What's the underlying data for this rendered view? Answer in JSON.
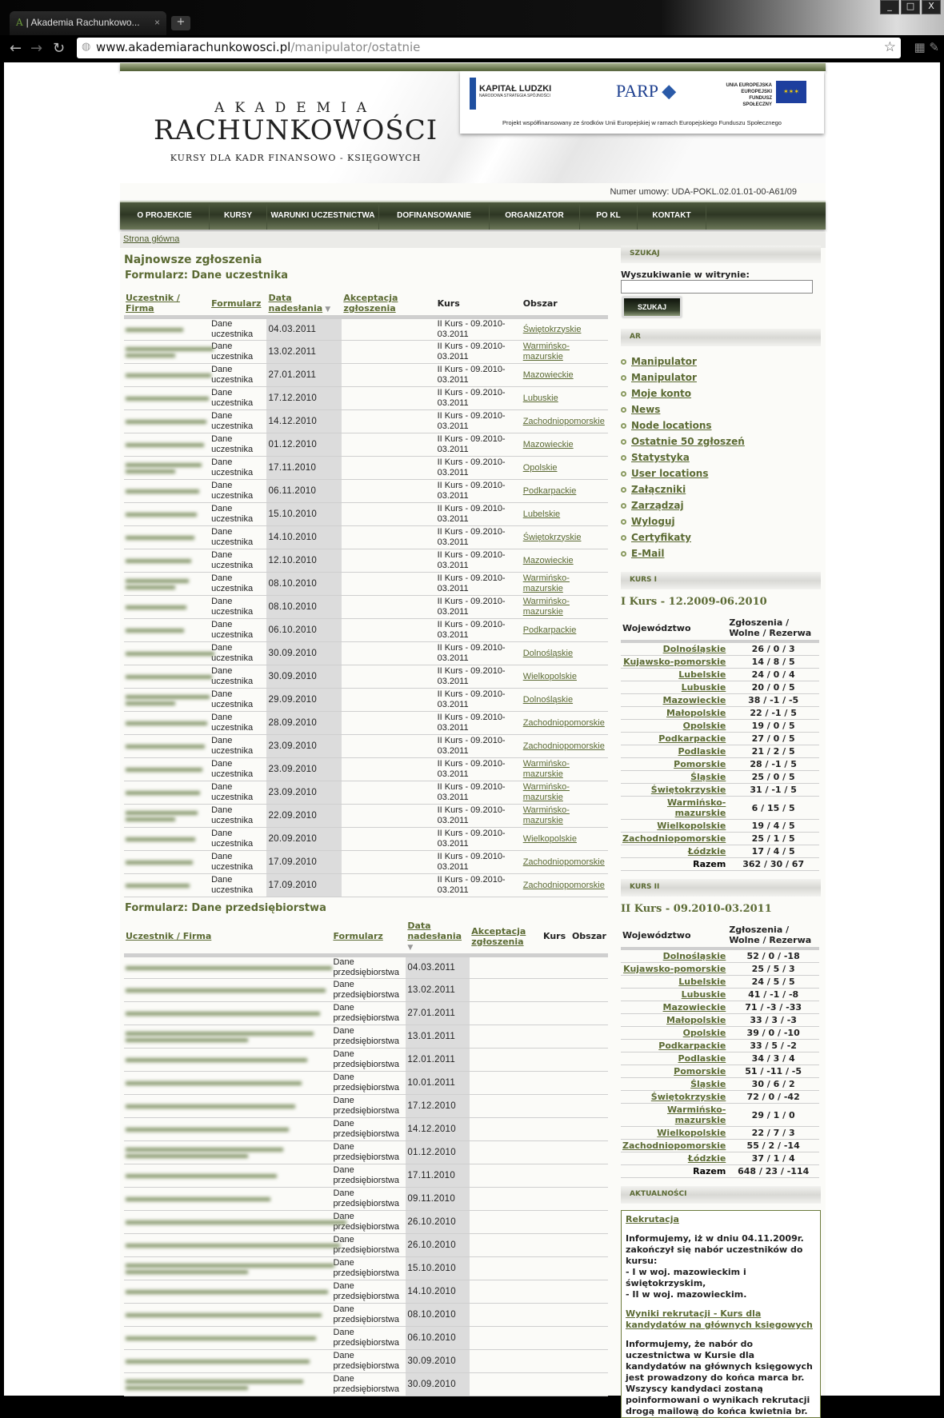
{
  "browser": {
    "tab_title": "| Akademia Rachunkowo...",
    "tab_icon": "A",
    "url_host": "www.akademiarachunkowosci.pl",
    "url_path": "/manipulator/ostatnie"
  },
  "header": {
    "logo_line1": "AKADEMIA",
    "logo_line2": "RACHUNKOWOŚCI",
    "logo_line3": "KURSY DLA KADR FINANSOWO - KSIĘGOWYCH",
    "eu": {
      "kl": "KAPITAŁ LUDZKI",
      "kl_sub": "NARODOWA STRATEGIA SPÓJNOŚCI",
      "parp": "PARP",
      "ue": "UNIA EUROPEJSKA\nEUROPEJSKI\nFUNDUSZ SPOŁECZNY",
      "project": "Projekt współfinansowany ze środków Unii Europejskiej w ramach Europejskiego Funduszu Społecznego"
    },
    "contract": "Numer umowy: UDA-POKL.02.01.01-00-A61/09"
  },
  "nav": [
    "O PROJEKCIE",
    "KURSY",
    "WARUNKI UCZESTNICTWA",
    "DOFINANSOWANIE",
    "ORGANIZATOR",
    "PO KL",
    "KONTAKT"
  ],
  "breadcrumb": "Strona główna",
  "main": {
    "title": "Najnowsze zgłoszenia",
    "form1": {
      "title": "Formularz: Dane uczestnika",
      "headers": [
        "Uczestnik / Firma",
        "Formularz",
        "Data nadesłania",
        "Akceptacja zgłoszenia",
        "Kurs",
        "Obszar"
      ],
      "form_label": "Dane uczestnika",
      "kurs": "II Kurs - 09.2010-03.2011",
      "rows": [
        [
          "04.03.2011",
          "Świętokrzyskie"
        ],
        [
          "13.02.2011",
          "Warmińsko-mazurskie"
        ],
        [
          "27.01.2011",
          "Mazowieckie"
        ],
        [
          "17.12.2010",
          "Lubuskie"
        ],
        [
          "14.12.2010",
          "Zachodniopomorskie"
        ],
        [
          "01.12.2010",
          "Mazowieckie"
        ],
        [
          "17.11.2010",
          "Opolskie"
        ],
        [
          "06.11.2010",
          "Podkarpackie"
        ],
        [
          "15.10.2010",
          "Lubelskie"
        ],
        [
          "14.10.2010",
          "Świętokrzyskie"
        ],
        [
          "12.10.2010",
          "Mazowieckie"
        ],
        [
          "08.10.2010",
          "Warmińsko-mazurskie"
        ],
        [
          "08.10.2010",
          "Warmińsko-mazurskie"
        ],
        [
          "06.10.2010",
          "Podkarpackie"
        ],
        [
          "30.09.2010",
          "Dolnośląskie"
        ],
        [
          "30.09.2010",
          "Wielkopolskie"
        ],
        [
          "29.09.2010",
          "Dolnośląskie"
        ],
        [
          "28.09.2010",
          "Zachodniopomorskie"
        ],
        [
          "23.09.2010",
          "Zachodniopomorskie"
        ],
        [
          "23.09.2010",
          "Warmińsko-mazurskie"
        ],
        [
          "23.09.2010",
          "Warmińsko-mazurskie"
        ],
        [
          "22.09.2010",
          "Warmińsko-mazurskie"
        ],
        [
          "20.09.2010",
          "Wielkopolskie"
        ],
        [
          "17.09.2010",
          "Zachodniopomorskie"
        ],
        [
          "17.09.2010",
          "Zachodniopomorskie"
        ]
      ]
    },
    "form2": {
      "title": "Formularz: Dane przedsiębiorstwa",
      "headers": [
        "Uczestnik / Firma",
        "Formularz",
        "Data nadesłania",
        "Akceptacja zgłoszenia",
        "Kurs",
        "Obszar"
      ],
      "form_label": "Dane przedsiębiorstwa",
      "dates": [
        "04.03.2011",
        "13.02.2011",
        "27.01.2011",
        "13.01.2011",
        "12.01.2011",
        "10.01.2011",
        "17.12.2010",
        "14.12.2010",
        "01.12.2010",
        "17.11.2010",
        "09.11.2010",
        "26.10.2010",
        "26.10.2010",
        "15.10.2010",
        "14.10.2010",
        "08.10.2010",
        "06.10.2010",
        "30.09.2010",
        "30.09.2010"
      ]
    }
  },
  "sidebar": {
    "search": {
      "block": "SZUKAJ",
      "label": "Wyszukiwanie w witrynie:",
      "value": "",
      "button": "SZUKAJ"
    },
    "ar": {
      "block": "AR",
      "items": [
        "Manipulator",
        "Manipulator",
        "Moje konto",
        "News",
        "Node locations",
        "Ostatnie 50 zgłoszeń",
        "Statystyka",
        "User locations",
        "Załączniki",
        "Zarządzaj",
        "Wyloguj",
        "Certyfikaty",
        "E-Mail"
      ]
    },
    "kurs1": {
      "block": "KURS I",
      "title": "I Kurs - 12.2009-06.2010",
      "col1": "Województwo",
      "col2": "Zgłoszenia / Wolne / Rezerwa",
      "rows": [
        [
          "Dolnośląskie",
          "26 / 0 / 3"
        ],
        [
          "Kujawsko-pomorskie",
          "14 / 8 / 5"
        ],
        [
          "Lubelskie",
          "24 / 0 / 4"
        ],
        [
          "Lubuskie",
          "20 / 0 / 5"
        ],
        [
          "Mazowieckie",
          "38 / -1 / -5"
        ],
        [
          "Małopolskie",
          "22 / -1 / 5"
        ],
        [
          "Opolskie",
          "19 / 0 / 5"
        ],
        [
          "Podkarpackie",
          "27 / 0 / 5"
        ],
        [
          "Podlaskie",
          "21 / 2 / 5"
        ],
        [
          "Pomorskie",
          "28 / -1 / 5"
        ],
        [
          "Śląskie",
          "25 / 0 / 5"
        ],
        [
          "Świętokrzyskie",
          "31 / -1 / 5"
        ],
        [
          "Warmińsko-mazurskie",
          "6 / 15 / 5"
        ],
        [
          "Wielkopolskie",
          "19 / 4 / 5"
        ],
        [
          "Zachodniopomorskie",
          "25 / 1 / 5"
        ],
        [
          "Łódzkie",
          "17 / 4 / 5"
        ]
      ],
      "total_label": "Razem",
      "total": "362 / 30 / 67"
    },
    "kurs2": {
      "block": "KURS II",
      "title": "II Kurs - 09.2010-03.2011",
      "col1": "Województwo",
      "col2": "Zgłoszenia / Wolne / Rezerwa",
      "rows": [
        [
          "Dolnośląskie",
          "52 / 0 / -18"
        ],
        [
          "Kujawsko-pomorskie",
          "25 / 5 / 3"
        ],
        [
          "Lubelskie",
          "24 / 5 / 5"
        ],
        [
          "Lubuskie",
          "41 / -1 / -8"
        ],
        [
          "Mazowieckie",
          "71 / -3 / -33"
        ],
        [
          "Małopolskie",
          "33 / 3 / -3"
        ],
        [
          "Opolskie",
          "39 / 0 / -10"
        ],
        [
          "Podkarpackie",
          "33 / 5 / -2"
        ],
        [
          "Podlaskie",
          "34 / 3 / 4"
        ],
        [
          "Pomorskie",
          "51 / -11 / -5"
        ],
        [
          "Śląskie",
          "30 / 6 / 2"
        ],
        [
          "Świętokrzyskie",
          "72 / 0 / -42"
        ],
        [
          "Warmińsko-mazurskie",
          "29 / 1 / 0"
        ],
        [
          "Wielkopolskie",
          "22 / 7 / 3"
        ],
        [
          "Zachodniopomorskie",
          "55 / 2 / -14"
        ],
        [
          "Łódzkie",
          "37 / 1 / 4"
        ]
      ],
      "total_label": "Razem",
      "total": "648 / 23 / -114"
    },
    "news": {
      "block": "AKTUALNOŚCI",
      "link1": "Rekrutacja",
      "text1": "Informujemy, iż w dniu 04.11.2009r. zakończył się nabór uczestników do kursu:\n- I w woj. mazowieckim i świętokrzyskim,\n- II w woj. mazowieckim.",
      "link2": "Wyniki rekrutacji - Kurs dla kandydatów na głównych księgowych",
      "text2": "Informujemy, że nabór do uczestnictwa w Kursie dla kandydatów na głównych księgowych jest prowadzony do końca marca br.\nWszyscy kandydaci zostaną poinformowani o wynikach rekrutacji drogą mailową do końca kwietnia br."
    }
  },
  "colors": {
    "accent": "#5b6a33",
    "nav": "#2e3724",
    "date_column": "#dcdcdc"
  }
}
